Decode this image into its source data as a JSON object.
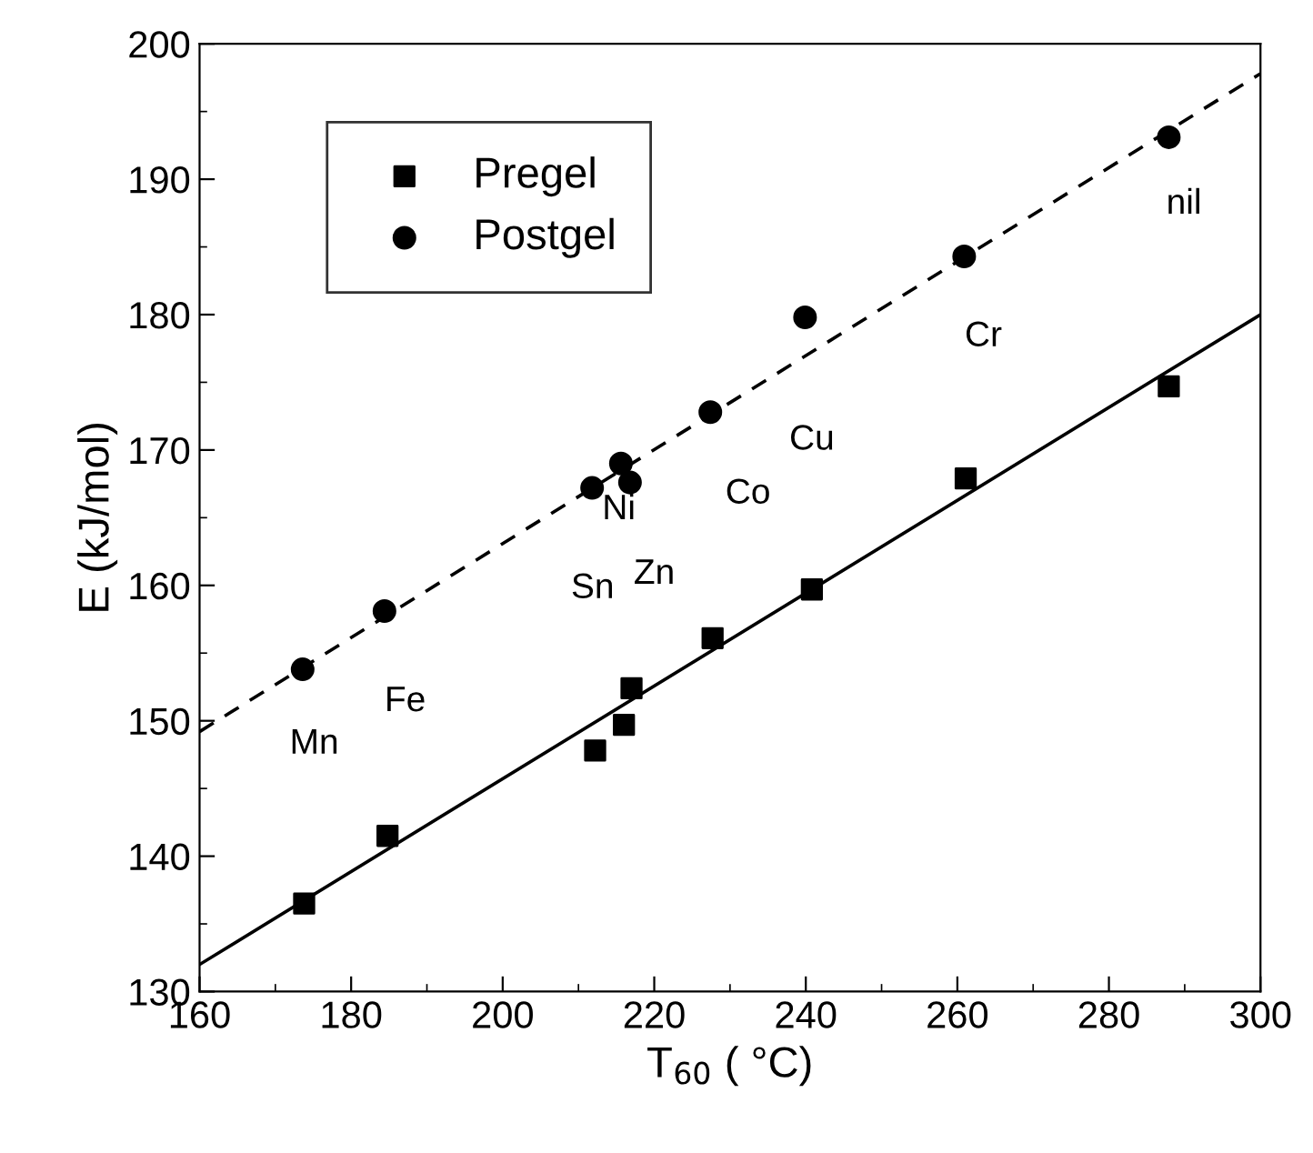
{
  "chart_data": {
    "type": "scatter",
    "xlabel": "T$_{60}$ ( °C)",
    "ylabel": "E (kJ/mol)",
    "xlim": [
      160,
      300
    ],
    "ylim": [
      130,
      200
    ],
    "xticks": [
      160,
      180,
      200,
      220,
      240,
      260,
      280,
      300
    ],
    "yticks": [
      130,
      140,
      150,
      160,
      170,
      180,
      190,
      200
    ],
    "grid": false,
    "legend": "top left",
    "series": [
      {
        "name": "Pregel",
        "marker": "square",
        "color": "#000000",
        "x": [
          173.8,
          184.8,
          212.2,
          216.0,
          217.0,
          227.7,
          240.8,
          261.1,
          287.9
        ],
        "values": [
          136.5,
          141.5,
          147.8,
          149.7,
          152.4,
          156.1,
          159.7,
          167.9,
          174.7
        ]
      },
      {
        "name": "Postgel",
        "marker": "circle",
        "color": "#000000",
        "x": [
          173.6,
          184.4,
          211.8,
          215.6,
          216.8,
          227.4,
          239.9,
          260.9,
          287.9
        ],
        "values": [
          153.8,
          158.1,
          167.2,
          169.0,
          167.6,
          172.8,
          179.8,
          184.3,
          193.1
        ]
      },
      {
        "type": "line",
        "line_style": "solid",
        "marker": "none",
        "color": "#000000",
        "x": [
          160,
          300
        ],
        "values": [
          132.0,
          180.0
        ]
      },
      {
        "type": "line",
        "line_style": "dashed",
        "marker": "none",
        "color": "#000000",
        "x": [
          160,
          300
        ],
        "values": [
          149.2,
          197.8
        ]
      }
    ],
    "annotations": [
      "Mn",
      "Fe",
      "Sn",
      "Ni",
      "Zn",
      "Co",
      "Cu",
      "Cr",
      "nil"
    ]
  }
}
